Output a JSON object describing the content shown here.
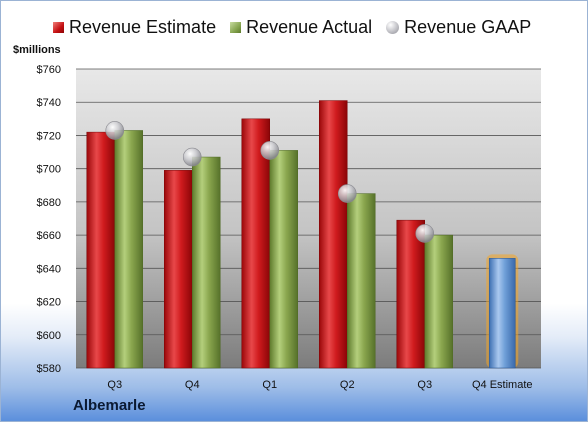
{
  "chart_data": {
    "type": "bar",
    "ylabel": "$millions",
    "ylim": [
      580,
      760
    ],
    "yticks": [
      "$760",
      "$740",
      "$720",
      "$700",
      "$680",
      "$660",
      "$640",
      "$620",
      "$600",
      "$580"
    ],
    "categories": [
      "Q3",
      "Q4",
      "Q1",
      "Q2",
      "Q3",
      "Q4 Estimate"
    ],
    "series": [
      {
        "name": "Revenue Estimate",
        "values": [
          722,
          699,
          730,
          741,
          669,
          null
        ]
      },
      {
        "name": "Revenue Actual",
        "values": [
          723,
          707,
          711,
          685,
          660,
          null
        ]
      },
      {
        "name": "Revenue GAAP",
        "values": [
          723,
          707,
          711,
          685,
          661,
          null
        ]
      }
    ],
    "forecast": {
      "category": "Q4 Estimate",
      "value": 646
    },
    "legend_position": "top",
    "grid": true,
    "colors": {
      "estimate": "#c8161b",
      "actual": "#8aa64e",
      "gaap": "#b8b8bc",
      "forecast": "#6f9fd8",
      "forecast_glow": "#f5a623"
    }
  },
  "company": "Albemarle"
}
